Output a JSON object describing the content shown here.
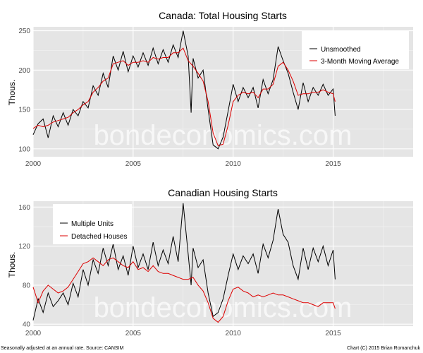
{
  "colors": {
    "panel_bg": "#e5e5e5",
    "grid_major": "#ffffff",
    "grid_minor": "#f2f2f2",
    "series_black": "#000000",
    "series_red": "#dd0000"
  },
  "watermark": "bondeconomics.com",
  "footer": {
    "left": "Seasonally adjusted at an annual rate. Source: CANSIM",
    "right": "Chart (C) 2015 Brian Romanchuk"
  },
  "chart_data": [
    {
      "type": "line",
      "title": "Canada: Total Housing Starts",
      "xlabel": "",
      "ylabel": "Thous.",
      "xlim": [
        2000,
        2019
      ],
      "ylim": [
        90,
        255
      ],
      "x_ticks": [
        2000,
        2005,
        2010,
        2015
      ],
      "y_ticks": [
        100,
        150,
        200,
        250
      ],
      "grid": true,
      "legend_position": "top-right",
      "series": [
        {
          "name": "Unsmoothed",
          "color": "#000000",
          "x": [
            2000.0,
            2000.25,
            2000.5,
            2000.75,
            2001.0,
            2001.25,
            2001.5,
            2001.75,
            2002.0,
            2002.25,
            2002.5,
            2002.75,
            2003.0,
            2003.25,
            2003.5,
            2003.75,
            2004.0,
            2004.25,
            2004.5,
            2004.75,
            2005.0,
            2005.25,
            2005.5,
            2005.75,
            2006.0,
            2006.25,
            2006.5,
            2006.75,
            2007.0,
            2007.25,
            2007.5,
            2007.75,
            2007.9,
            2008.0,
            2008.25,
            2008.5,
            2008.75,
            2009.0,
            2009.25,
            2009.5,
            2009.75,
            2010.0,
            2010.25,
            2010.5,
            2010.75,
            2011.0,
            2011.25,
            2011.5,
            2011.75,
            2012.0,
            2012.25,
            2012.5,
            2012.75,
            2013.0,
            2013.25,
            2013.5,
            2013.75,
            2014.0,
            2014.25,
            2014.5,
            2014.75,
            2015.0,
            2015.1
          ],
          "values": [
            118,
            132,
            138,
            114,
            142,
            128,
            146,
            130,
            150,
            142,
            160,
            152,
            180,
            168,
            196,
            178,
            218,
            200,
            224,
            198,
            218,
            204,
            222,
            206,
            228,
            208,
            226,
            210,
            232,
            216,
            250,
            218,
            146,
            215,
            190,
            200,
            150,
            105,
            100,
            115,
            148,
            182,
            160,
            178,
            165,
            178,
            152,
            188,
            170,
            188,
            230,
            212,
            196,
            172,
            150,
            184,
            160,
            178,
            168,
            182,
            168,
            176,
            142
          ]
        },
        {
          "name": "3-Month Moving Average",
          "color": "#dd0000",
          "x": [
            2000.0,
            2000.25,
            2000.5,
            2000.75,
            2001.0,
            2001.25,
            2001.5,
            2001.75,
            2002.0,
            2002.25,
            2002.5,
            2002.75,
            2003.0,
            2003.25,
            2003.5,
            2003.75,
            2004.0,
            2004.25,
            2004.5,
            2004.75,
            2005.0,
            2005.25,
            2005.5,
            2005.75,
            2006.0,
            2006.25,
            2006.5,
            2006.75,
            2007.0,
            2007.25,
            2007.5,
            2007.75,
            2008.0,
            2008.25,
            2008.5,
            2008.75,
            2009.0,
            2009.25,
            2009.5,
            2009.75,
            2010.0,
            2010.25,
            2010.5,
            2010.75,
            2011.0,
            2011.25,
            2011.5,
            2011.75,
            2012.0,
            2012.25,
            2012.5,
            2012.75,
            2013.0,
            2013.25,
            2013.5,
            2013.75,
            2014.0,
            2014.25,
            2014.5,
            2014.75,
            2015.0,
            2015.1
          ],
          "values": [
            126,
            130,
            128,
            130,
            134,
            136,
            138,
            140,
            146,
            150,
            156,
            160,
            172,
            178,
            186,
            190,
            208,
            210,
            212,
            206,
            210,
            210,
            212,
            210,
            216,
            214,
            216,
            216,
            222,
            222,
            228,
            212,
            205,
            196,
            186,
            160,
            120,
            104,
            106,
            130,
            160,
            168,
            172,
            170,
            172,
            165,
            176,
            176,
            182,
            205,
            210,
            200,
            186,
            168,
            170,
            170,
            172,
            172,
            175,
            172,
            170,
            160
          ]
        }
      ]
    },
    {
      "type": "line",
      "title": "Canadian Housing Starts",
      "xlabel": "",
      "ylabel": "Thous.",
      "xlim": [
        2000,
        2019
      ],
      "ylim": [
        38,
        166
      ],
      "x_ticks": [
        2000,
        2005,
        2010,
        2015
      ],
      "y_ticks": [
        40,
        80,
        120,
        160
      ],
      "grid": true,
      "legend_position": "top-left",
      "series": [
        {
          "name": "Multiple Units",
          "color": "#000000",
          "x": [
            2000.0,
            2000.25,
            2000.5,
            2000.75,
            2001.0,
            2001.25,
            2001.5,
            2001.75,
            2002.0,
            2002.25,
            2002.5,
            2002.75,
            2003.0,
            2003.25,
            2003.5,
            2003.75,
            2004.0,
            2004.25,
            2004.5,
            2004.75,
            2005.0,
            2005.25,
            2005.5,
            2005.75,
            2006.0,
            2006.25,
            2006.5,
            2006.75,
            2007.0,
            2007.25,
            2007.5,
            2007.75,
            2007.9,
            2008.0,
            2008.25,
            2008.5,
            2008.75,
            2009.0,
            2009.25,
            2009.5,
            2009.75,
            2010.0,
            2010.25,
            2010.5,
            2010.75,
            2011.0,
            2011.25,
            2011.5,
            2011.75,
            2012.0,
            2012.25,
            2012.5,
            2012.75,
            2013.0,
            2013.25,
            2013.5,
            2013.75,
            2014.0,
            2014.25,
            2014.5,
            2014.75,
            2015.0,
            2015.1
          ],
          "values": [
            44,
            66,
            52,
            72,
            58,
            64,
            72,
            60,
            82,
            68,
            96,
            80,
            106,
            92,
            118,
            100,
            122,
            96,
            110,
            90,
            120,
            98,
            112,
            96,
            124,
            100,
            116,
            102,
            130,
            104,
            164,
            112,
            80,
            118,
            98,
            106,
            72,
            48,
            52,
            66,
            90,
            112,
            96,
            110,
            102,
            112,
            92,
            122,
            108,
            126,
            158,
            132,
            124,
            100,
            86,
            118,
            96,
            118,
            104,
            120,
            100,
            116,
            86
          ]
        },
        {
          "name": "Detached Houses",
          "color": "#dd0000",
          "x": [
            2000.0,
            2000.25,
            2000.5,
            2000.75,
            2001.0,
            2001.25,
            2001.5,
            2001.75,
            2002.0,
            2002.25,
            2002.5,
            2002.75,
            2003.0,
            2003.25,
            2003.5,
            2003.75,
            2004.0,
            2004.25,
            2004.5,
            2004.75,
            2005.0,
            2005.25,
            2005.5,
            2005.75,
            2006.0,
            2006.25,
            2006.5,
            2006.75,
            2007.0,
            2007.25,
            2007.5,
            2007.75,
            2008.0,
            2008.25,
            2008.5,
            2008.75,
            2009.0,
            2009.25,
            2009.5,
            2009.75,
            2010.0,
            2010.25,
            2010.5,
            2010.75,
            2011.0,
            2011.25,
            2011.5,
            2011.75,
            2012.0,
            2012.25,
            2012.5,
            2012.75,
            2013.0,
            2013.25,
            2013.5,
            2013.75,
            2014.0,
            2014.25,
            2014.5,
            2014.75,
            2015.0,
            2015.1
          ],
          "values": [
            78,
            62,
            74,
            80,
            76,
            72,
            74,
            78,
            86,
            94,
            102,
            104,
            108,
            104,
            100,
            106,
            108,
            104,
            100,
            98,
            104,
            96,
            98,
            94,
            100,
            94,
            92,
            92,
            90,
            88,
            86,
            86,
            88,
            80,
            74,
            62,
            46,
            42,
            48,
            64,
            76,
            78,
            74,
            72,
            68,
            70,
            68,
            70,
            72,
            70,
            70,
            68,
            66,
            64,
            62,
            62,
            60,
            58,
            62,
            62,
            62,
            56
          ]
        }
      ]
    }
  ]
}
